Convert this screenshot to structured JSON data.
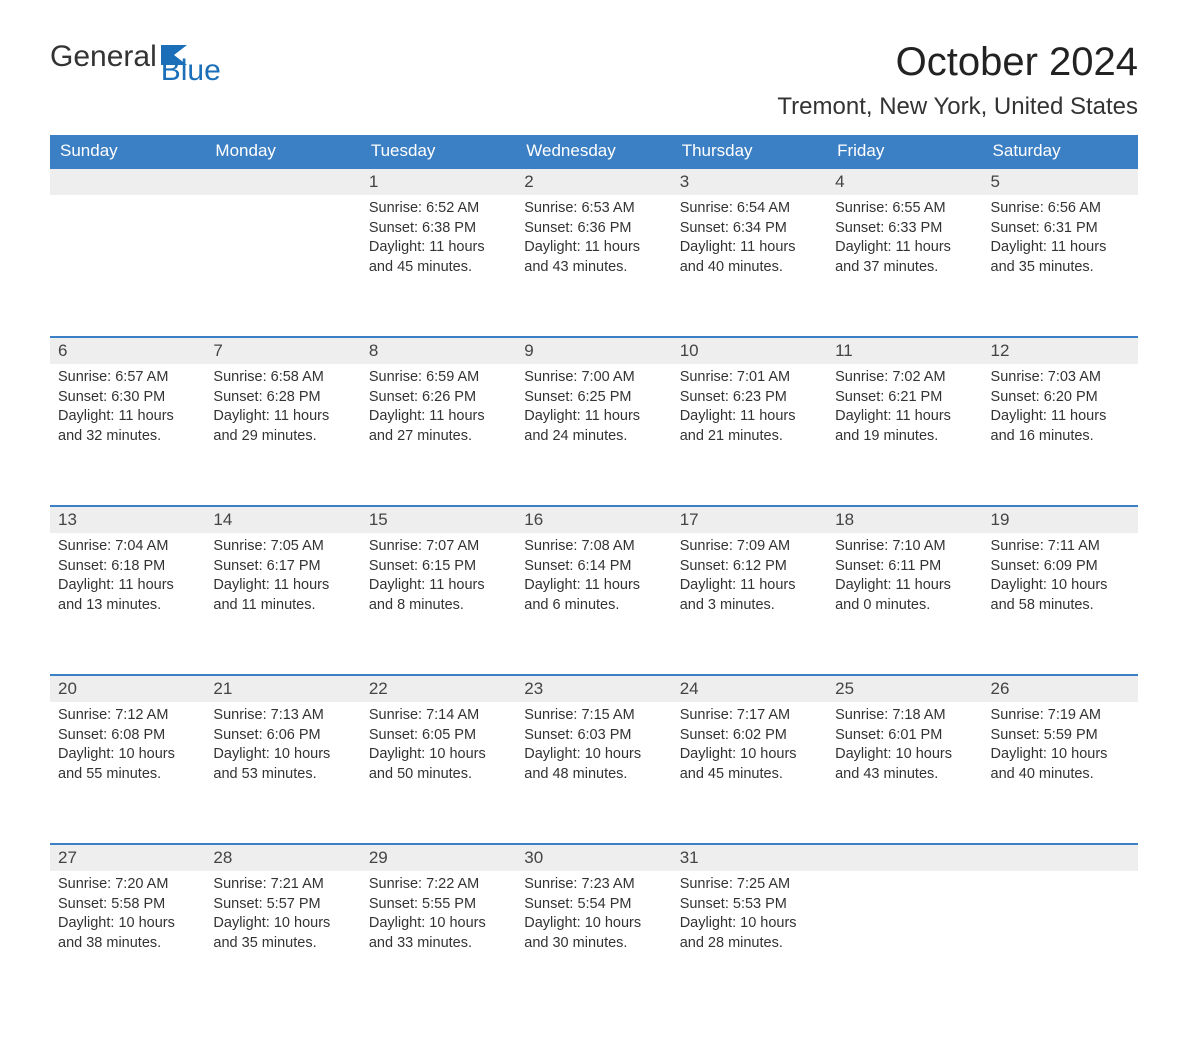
{
  "brand": {
    "text1": "General",
    "text2": "Blue"
  },
  "title": "October 2024",
  "location": "Tremont, New York, United States",
  "colors": {
    "header_bg": "#3b7fc4",
    "header_fg": "#ffffff",
    "daynum_bg": "#eeeeee",
    "daynum_border": "#3b7fc4",
    "page_bg": "#ffffff",
    "text": "#333333",
    "brand_blue": "#1a6fb8"
  },
  "weekdays": [
    "Sunday",
    "Monday",
    "Tuesday",
    "Wednesday",
    "Thursday",
    "Friday",
    "Saturday"
  ],
  "weeks": [
    [
      null,
      null,
      {
        "n": "1",
        "sr": "6:52 AM",
        "ss": "6:38 PM",
        "dh": "11",
        "dm": "45"
      },
      {
        "n": "2",
        "sr": "6:53 AM",
        "ss": "6:36 PM",
        "dh": "11",
        "dm": "43"
      },
      {
        "n": "3",
        "sr": "6:54 AM",
        "ss": "6:34 PM",
        "dh": "11",
        "dm": "40"
      },
      {
        "n": "4",
        "sr": "6:55 AM",
        "ss": "6:33 PM",
        "dh": "11",
        "dm": "37"
      },
      {
        "n": "5",
        "sr": "6:56 AM",
        "ss": "6:31 PM",
        "dh": "11",
        "dm": "35"
      }
    ],
    [
      {
        "n": "6",
        "sr": "6:57 AM",
        "ss": "6:30 PM",
        "dh": "11",
        "dm": "32"
      },
      {
        "n": "7",
        "sr": "6:58 AM",
        "ss": "6:28 PM",
        "dh": "11",
        "dm": "29"
      },
      {
        "n": "8",
        "sr": "6:59 AM",
        "ss": "6:26 PM",
        "dh": "11",
        "dm": "27"
      },
      {
        "n": "9",
        "sr": "7:00 AM",
        "ss": "6:25 PM",
        "dh": "11",
        "dm": "24"
      },
      {
        "n": "10",
        "sr": "7:01 AM",
        "ss": "6:23 PM",
        "dh": "11",
        "dm": "21"
      },
      {
        "n": "11",
        "sr": "7:02 AM",
        "ss": "6:21 PM",
        "dh": "11",
        "dm": "19"
      },
      {
        "n": "12",
        "sr": "7:03 AM",
        "ss": "6:20 PM",
        "dh": "11",
        "dm": "16"
      }
    ],
    [
      {
        "n": "13",
        "sr": "7:04 AM",
        "ss": "6:18 PM",
        "dh": "11",
        "dm": "13"
      },
      {
        "n": "14",
        "sr": "7:05 AM",
        "ss": "6:17 PM",
        "dh": "11",
        "dm": "11"
      },
      {
        "n": "15",
        "sr": "7:07 AM",
        "ss": "6:15 PM",
        "dh": "11",
        "dm": "8"
      },
      {
        "n": "16",
        "sr": "7:08 AM",
        "ss": "6:14 PM",
        "dh": "11",
        "dm": "6"
      },
      {
        "n": "17",
        "sr": "7:09 AM",
        "ss": "6:12 PM",
        "dh": "11",
        "dm": "3"
      },
      {
        "n": "18",
        "sr": "7:10 AM",
        "ss": "6:11 PM",
        "dh": "11",
        "dm": "0"
      },
      {
        "n": "19",
        "sr": "7:11 AM",
        "ss": "6:09 PM",
        "dh": "10",
        "dm": "58"
      }
    ],
    [
      {
        "n": "20",
        "sr": "7:12 AM",
        "ss": "6:08 PM",
        "dh": "10",
        "dm": "55"
      },
      {
        "n": "21",
        "sr": "7:13 AM",
        "ss": "6:06 PM",
        "dh": "10",
        "dm": "53"
      },
      {
        "n": "22",
        "sr": "7:14 AM",
        "ss": "6:05 PM",
        "dh": "10",
        "dm": "50"
      },
      {
        "n": "23",
        "sr": "7:15 AM",
        "ss": "6:03 PM",
        "dh": "10",
        "dm": "48"
      },
      {
        "n": "24",
        "sr": "7:17 AM",
        "ss": "6:02 PM",
        "dh": "10",
        "dm": "45"
      },
      {
        "n": "25",
        "sr": "7:18 AM",
        "ss": "6:01 PM",
        "dh": "10",
        "dm": "43"
      },
      {
        "n": "26",
        "sr": "7:19 AM",
        "ss": "5:59 PM",
        "dh": "10",
        "dm": "40"
      }
    ],
    [
      {
        "n": "27",
        "sr": "7:20 AM",
        "ss": "5:58 PM",
        "dh": "10",
        "dm": "38"
      },
      {
        "n": "28",
        "sr": "7:21 AM",
        "ss": "5:57 PM",
        "dh": "10",
        "dm": "35"
      },
      {
        "n": "29",
        "sr": "7:22 AM",
        "ss": "5:55 PM",
        "dh": "10",
        "dm": "33"
      },
      {
        "n": "30",
        "sr": "7:23 AM",
        "ss": "5:54 PM",
        "dh": "10",
        "dm": "30"
      },
      {
        "n": "31",
        "sr": "7:25 AM",
        "ss": "5:53 PM",
        "dh": "10",
        "dm": "28"
      },
      null,
      null
    ]
  ],
  "labels": {
    "sunrise": "Sunrise:",
    "sunset": "Sunset:",
    "daylight_prefix": "Daylight:",
    "hours_word": "hours",
    "and_word": "and",
    "minutes_word": "minutes."
  }
}
